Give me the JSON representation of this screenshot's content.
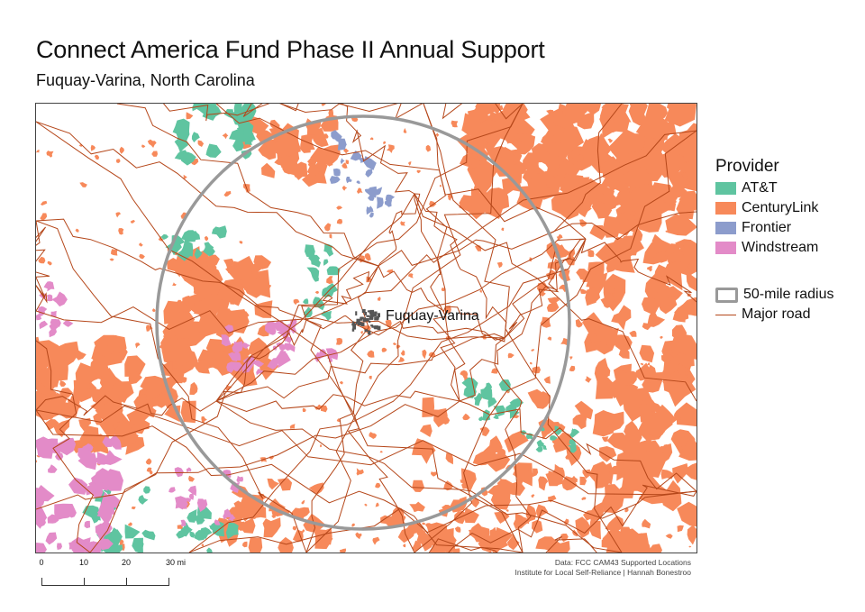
{
  "title": "Connect America Fund Phase II Annual Support",
  "subtitle": "Fuquay-Varina, North Carolina",
  "map": {
    "place_label": "Fuquay-Varina",
    "colors": {
      "att": "#5fc4a0",
      "centurylink": "#f7895a",
      "frontier": "#8c9ccc",
      "windstream": "#e38bc8",
      "road": "#b5471a",
      "radius": "#999999",
      "town": "#555555"
    }
  },
  "legend": {
    "title": "Provider",
    "items": [
      {
        "label": "AT&T",
        "color": "#5fc4a0"
      },
      {
        "label": "CenturyLink",
        "color": "#f7895a"
      },
      {
        "label": "Frontier",
        "color": "#8c9ccc"
      },
      {
        "label": "Windstream",
        "color": "#e38bc8"
      }
    ],
    "radius_label": "50-mile radius",
    "road_label": "Major road"
  },
  "scalebar": {
    "labels": [
      "0",
      "10",
      "20",
      "30 mi"
    ]
  },
  "credits": {
    "line1": "Data: FCC CAM43 Supported Locations",
    "line2": "Institute for Local Self-Reliance | Hannah Bonestroo"
  }
}
